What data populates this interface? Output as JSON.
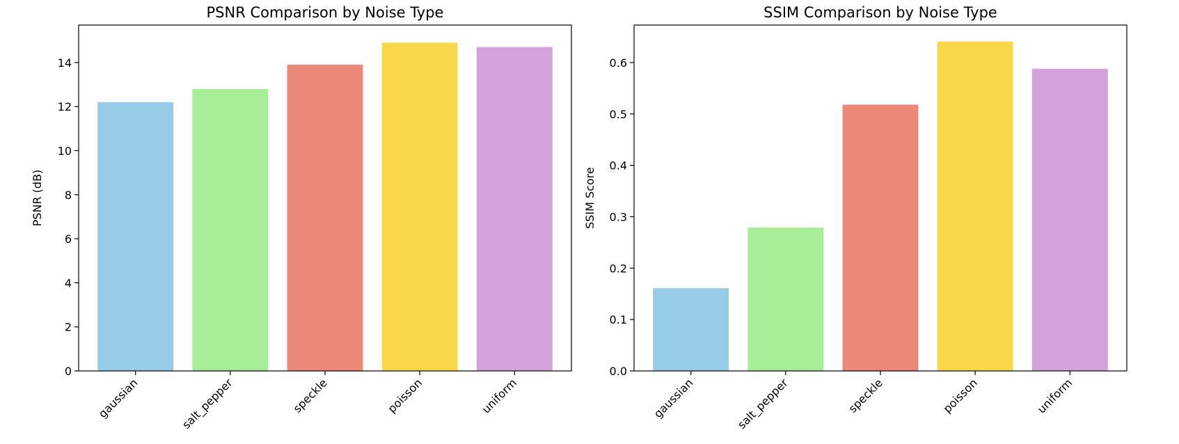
{
  "chart_data": [
    {
      "type": "bar",
      "title": "PSNR Comparison by Noise Type",
      "xlabel": "",
      "ylabel": "PSNR (dB)",
      "categories": [
        "gaussian",
        "salt_pepper",
        "speckle",
        "poisson",
        "uniform"
      ],
      "values": [
        12.2,
        12.8,
        13.9,
        14.9,
        14.7
      ],
      "colors": [
        "#97cbe8",
        "#a8ed98",
        "#eb8878",
        "#f8d74b",
        "#d4a2da"
      ],
      "ylim": [
        0,
        15.7
      ],
      "yticks": [
        0,
        2,
        4,
        6,
        8,
        10,
        12,
        14
      ],
      "ytick_labels": [
        "0",
        "2",
        "4",
        "6",
        "8",
        "10",
        "12",
        "14"
      ],
      "grid": false,
      "legend": "none"
    },
    {
      "type": "bar",
      "title": "SSIM Comparison by Noise Type",
      "xlabel": "",
      "ylabel": "SSIM Score",
      "categories": [
        "gaussian",
        "salt_pepper",
        "speckle",
        "poisson",
        "uniform"
      ],
      "values": [
        0.161,
        0.279,
        0.518,
        0.641,
        0.588
      ],
      "colors": [
        "#97cbe8",
        "#a8ed98",
        "#eb8878",
        "#f8d74b",
        "#d4a2da"
      ],
      "ylim": [
        0,
        0.673
      ],
      "yticks": [
        0,
        0.1,
        0.2,
        0.3,
        0.4,
        0.5,
        0.6
      ],
      "ytick_labels": [
        "0.0",
        "0.1",
        "0.2",
        "0.3",
        "0.4",
        "0.5",
        "0.6"
      ],
      "grid": false,
      "legend": "none"
    }
  ]
}
